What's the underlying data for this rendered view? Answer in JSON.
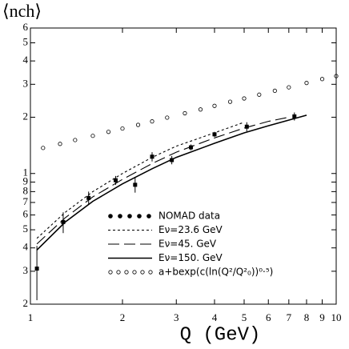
{
  "chart_data": {
    "type": "line",
    "y_label": "⟨nch⟩",
    "x_label": "Q (GeV)",
    "log_x": true,
    "log_y": true,
    "xlim": [
      1,
      10
    ],
    "ylim": [
      0.2,
      6
    ],
    "xticks": [
      1,
      2,
      3,
      4,
      5,
      6,
      7,
      8,
      9,
      10
    ],
    "yticks": [
      {
        "value": 0.2,
        "label": "2"
      },
      {
        "value": 0.3,
        "label": "3"
      },
      {
        "value": 0.4,
        "label": "4"
      },
      {
        "value": 0.5,
        "label": "5"
      },
      {
        "value": 0.6,
        "label": "6"
      },
      {
        "value": 0.7,
        "label": "7"
      },
      {
        "value": 0.8,
        "label": "8"
      },
      {
        "value": 0.9,
        "label": "9"
      },
      1,
      2,
      3,
      4,
      5,
      6
    ],
    "series": [
      {
        "name": "NOMAD data",
        "style": "points",
        "color": "#000000",
        "x": [
          1.05,
          1.28,
          1.55,
          1.9,
          2.2,
          2.5,
          2.9,
          3.35,
          4.0,
          5.1,
          7.3
        ],
        "values": [
          0.31,
          0.55,
          0.74,
          0.92,
          0.87,
          1.23,
          1.18,
          1.38,
          1.62,
          1.78,
          2.02
        ],
        "errors": [
          0.1,
          0.07,
          0.06,
          0.05,
          0.08,
          0.07,
          0.06,
          0.05,
          0.05,
          0.1,
          0.1
        ]
      },
      {
        "name": "Eν=23.6 GeV",
        "style": "dashed",
        "color": "#000000",
        "x": [
          1.05,
          1.3,
          1.6,
          2,
          2.5,
          3,
          4,
          5
        ],
        "values": [
          0.45,
          0.62,
          0.8,
          1.0,
          1.22,
          1.4,
          1.65,
          1.88
        ]
      },
      {
        "name": "Eν=45. GeV",
        "style": "longdash",
        "color": "#000000",
        "x": [
          1.05,
          1.3,
          1.6,
          2,
          2.5,
          3,
          4,
          5,
          6,
          7
        ],
        "values": [
          0.42,
          0.58,
          0.75,
          0.93,
          1.13,
          1.3,
          1.55,
          1.75,
          1.9,
          2.0
        ]
      },
      {
        "name": "Eν=150. GeV",
        "style": "solid",
        "color": "#000000",
        "x": [
          1.05,
          1.3,
          1.6,
          2,
          2.5,
          3,
          4,
          5,
          6,
          8
        ],
        "values": [
          0.39,
          0.55,
          0.71,
          0.88,
          1.06,
          1.22,
          1.45,
          1.65,
          1.8,
          2.05
        ]
      },
      {
        "name": "a+bexp(c(ln(Q²/Q²₀))⁰·⁵)",
        "style": "circles",
        "color": "#000000",
        "x": [
          1.1,
          1.25,
          1.4,
          1.6,
          1.8,
          2,
          2.25,
          2.5,
          2.8,
          3.2,
          3.6,
          4,
          4.5,
          5,
          5.6,
          6.3,
          7,
          8,
          9,
          10
        ],
        "values": [
          1.37,
          1.44,
          1.51,
          1.59,
          1.67,
          1.74,
          1.82,
          1.9,
          1.99,
          2.1,
          2.2,
          2.3,
          2.42,
          2.52,
          2.64,
          2.77,
          2.89,
          3.05,
          3.2,
          3.32
        ]
      }
    ]
  }
}
